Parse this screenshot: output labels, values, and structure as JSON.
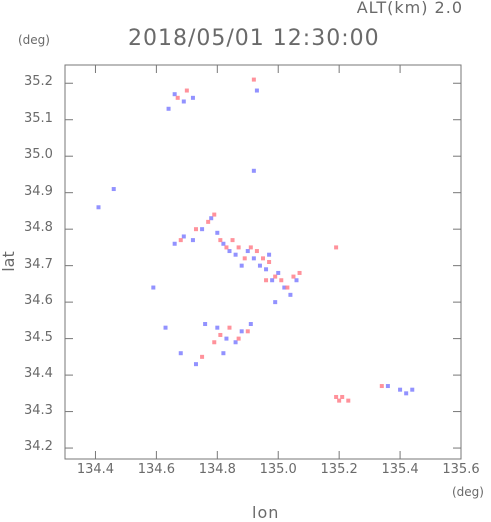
{
  "header": {
    "alt_label": "ALT(km)  2.0",
    "timestamp": "2018/05/01 12:30:00",
    "deg_label_y": "(deg)",
    "deg_label_x": "(deg)"
  },
  "chart_data": {
    "type": "scatter",
    "title": "2018/05/01 12:30:00",
    "xlabel": "lon",
    "ylabel": "lat",
    "xlim": [
      134.3,
      135.6
    ],
    "ylim": [
      34.17,
      35.25
    ],
    "x_ticks": [
      "134.4",
      "134.6",
      "134.8",
      "135.0",
      "135.2",
      "135.4",
      "135.6"
    ],
    "y_ticks": [
      "34.2",
      "34.3",
      "34.4",
      "34.5",
      "34.6",
      "34.7",
      "34.8",
      "34.9",
      "35.0",
      "35.1",
      "35.2"
    ],
    "colors": {
      "positive": "#ff7f8a",
      "negative": "#7f7fff",
      "axis": "#777777"
    },
    "series": [
      {
        "color": "#7f7fff",
        "points": [
          [
            134.66,
            35.17
          ],
          [
            134.69,
            35.15
          ],
          [
            134.64,
            35.13
          ],
          [
            134.72,
            35.16
          ],
          [
            134.93,
            35.18
          ],
          [
            134.92,
            34.96
          ],
          [
            134.41,
            34.86
          ],
          [
            134.46,
            34.91
          ],
          [
            134.59,
            34.64
          ],
          [
            134.66,
            34.76
          ],
          [
            134.69,
            34.78
          ],
          [
            134.72,
            34.77
          ],
          [
            134.75,
            34.8
          ],
          [
            134.78,
            34.83
          ],
          [
            134.8,
            34.79
          ],
          [
            134.82,
            34.76
          ],
          [
            134.84,
            34.74
          ],
          [
            134.86,
            34.73
          ],
          [
            134.88,
            34.7
          ],
          [
            134.9,
            34.74
          ],
          [
            134.92,
            34.72
          ],
          [
            134.94,
            34.7
          ],
          [
            134.96,
            34.69
          ],
          [
            134.98,
            34.66
          ],
          [
            135.0,
            34.68
          ],
          [
            135.02,
            34.64
          ],
          [
            135.04,
            34.62
          ],
          [
            134.99,
            34.6
          ],
          [
            135.06,
            34.66
          ],
          [
            134.97,
            34.73
          ],
          [
            134.8,
            34.53
          ],
          [
            134.83,
            34.5
          ],
          [
            134.86,
            34.49
          ],
          [
            134.88,
            34.52
          ],
          [
            134.82,
            34.46
          ],
          [
            134.76,
            34.54
          ],
          [
            134.63,
            34.53
          ],
          [
            134.91,
            34.54
          ],
          [
            134.73,
            34.43
          ],
          [
            134.68,
            34.46
          ],
          [
            135.4,
            34.36
          ],
          [
            135.42,
            34.35
          ],
          [
            135.44,
            34.36
          ],
          [
            135.36,
            34.37
          ]
        ]
      },
      {
        "color": "#ff7f8a",
        "points": [
          [
            134.67,
            35.16
          ],
          [
            134.7,
            35.18
          ],
          [
            134.92,
            35.21
          ],
          [
            134.68,
            34.77
          ],
          [
            134.73,
            34.8
          ],
          [
            134.77,
            34.82
          ],
          [
            134.79,
            34.84
          ],
          [
            134.81,
            34.77
          ],
          [
            134.83,
            34.75
          ],
          [
            134.85,
            34.77
          ],
          [
            134.87,
            34.75
          ],
          [
            134.89,
            34.72
          ],
          [
            134.91,
            34.75
          ],
          [
            134.93,
            34.74
          ],
          [
            134.95,
            34.72
          ],
          [
            134.97,
            34.71
          ],
          [
            134.99,
            34.67
          ],
          [
            135.01,
            34.66
          ],
          [
            135.03,
            34.64
          ],
          [
            135.05,
            34.67
          ],
          [
            135.07,
            34.68
          ],
          [
            134.96,
            34.66
          ],
          [
            135.19,
            34.75
          ],
          [
            134.81,
            34.51
          ],
          [
            134.84,
            34.53
          ],
          [
            134.87,
            34.5
          ],
          [
            134.79,
            34.49
          ],
          [
            134.9,
            34.52
          ],
          [
            134.75,
            34.45
          ],
          [
            135.19,
            34.34
          ],
          [
            135.21,
            34.34
          ],
          [
            135.23,
            34.33
          ],
          [
            135.2,
            34.33
          ],
          [
            135.34,
            34.37
          ]
        ]
      }
    ]
  }
}
